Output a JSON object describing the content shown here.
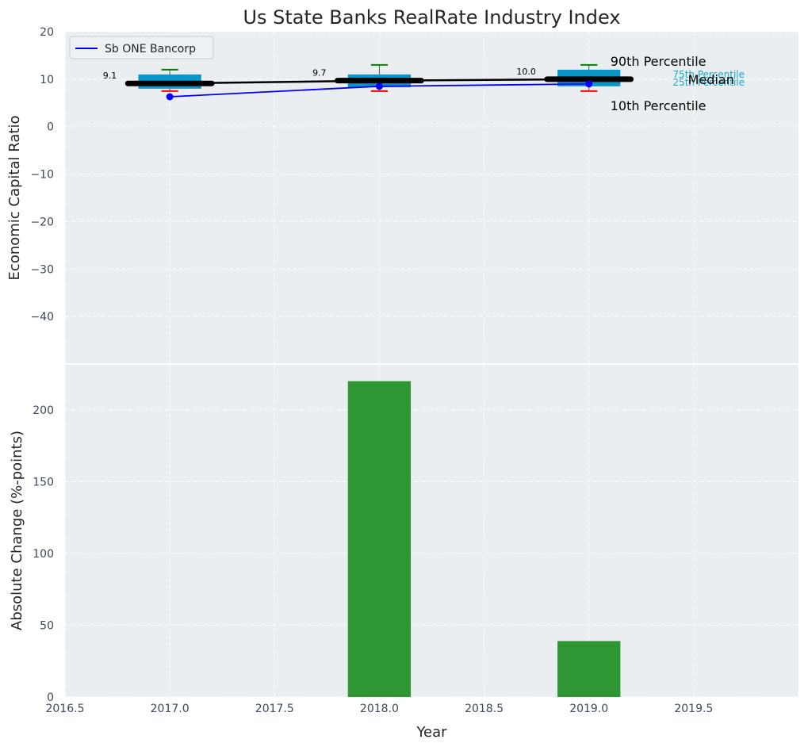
{
  "chart_data": [
    {
      "type": "box",
      "title": "Us State Banks RealRate Industry Index",
      "xlabel": "",
      "ylabel": "Economic Capital Ratio",
      "ylim": [
        -50,
        20
      ],
      "yticks": [
        20,
        10,
        0,
        -10,
        -20,
        -30,
        -40
      ],
      "xlim": [
        2016.5,
        2020.0
      ],
      "xticks": [
        2016.5,
        2017.0,
        2017.5,
        2018.0,
        2018.5,
        2019.0,
        2019.5
      ],
      "grid": true,
      "legend": {
        "position": "top-left",
        "entries": [
          "Sb ONE Bancorp"
        ]
      },
      "years": [
        2017,
        2018,
        2019
      ],
      "boxes": [
        {
          "year": 2017,
          "p10": 7.5,
          "p25": 8.0,
          "median": 9.1,
          "p75": 11.0,
          "p90": 12.0
        },
        {
          "year": 2018,
          "p10": 7.5,
          "p25": 8.3,
          "median": 9.7,
          "p75": 11.0,
          "p90": 13.0
        },
        {
          "year": 2019,
          "p10": 7.5,
          "p25": 8.5,
          "median": 10.0,
          "p75": 12.0,
          "p90": 13.0
        }
      ],
      "median_labels": [
        "9.1",
        "9.7",
        "10.0"
      ],
      "series": [
        {
          "name": "Sb ONE Bancorp",
          "x": [
            2017,
            2018,
            2019
          ],
          "values": [
            6.3,
            8.5,
            9.0
          ],
          "color": "#0000ff"
        }
      ],
      "annotations": {
        "p90": "90th Percentile",
        "p75": "75th Percentile",
        "median": "Median",
        "p25": "25th Percentile",
        "p10": "10th Percentile"
      },
      "colors": {
        "box": "#0a96c8",
        "median": "#000000",
        "whisker_top": "#008000",
        "whisker_bottom": "#ff0000",
        "annot_blue": "#1aa7d0",
        "background": "#eaeef0"
      }
    },
    {
      "type": "bar",
      "xlabel": "Year",
      "ylabel": "Absolute Change (%-points)",
      "ylim": [
        0,
        232
      ],
      "yticks": [
        0,
        50,
        100,
        150,
        200
      ],
      "xlim": [
        2016.5,
        2020.0
      ],
      "xticks": [
        2016.5,
        2017.0,
        2017.5,
        2018.0,
        2018.5,
        2019.0,
        2019.5
      ],
      "grid": true,
      "categories": [
        2018,
        2019
      ],
      "values": [
        220,
        39
      ],
      "colors": {
        "bar": "#2e9632",
        "background": "#eaeef0"
      }
    }
  ]
}
